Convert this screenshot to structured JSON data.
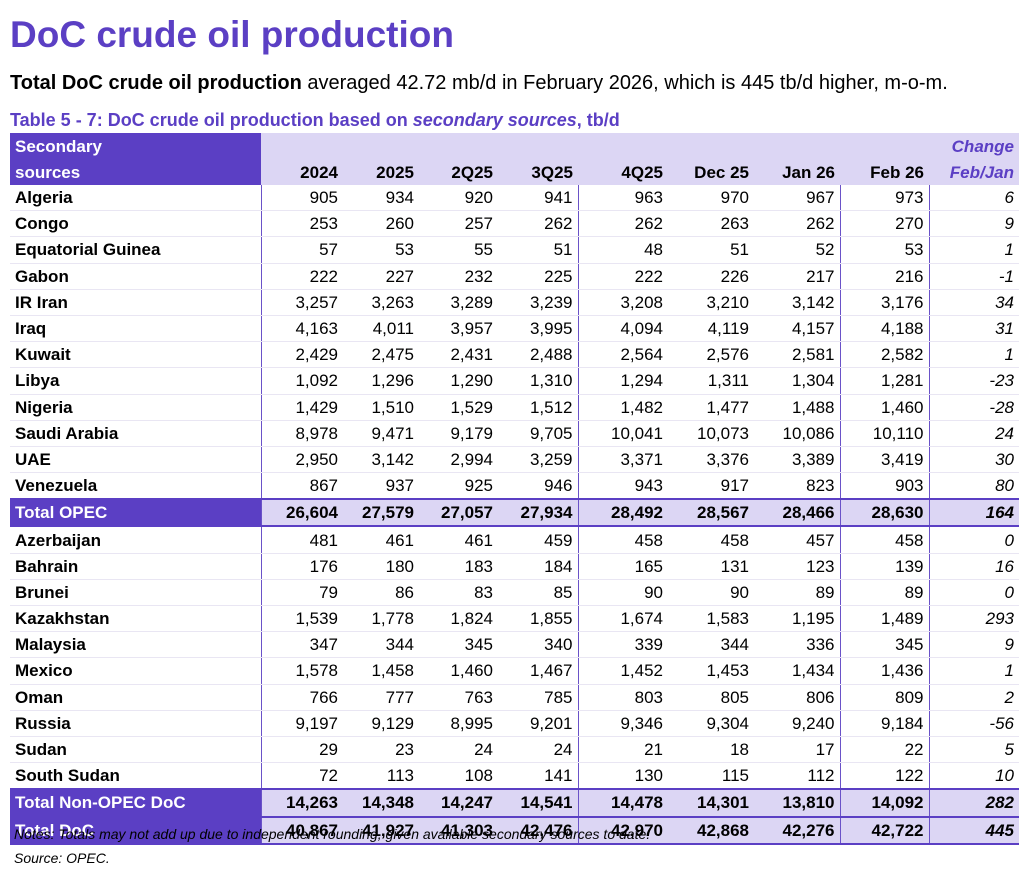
{
  "title": "DoC crude oil production",
  "intro": {
    "bold": "Total DoC crude oil production",
    "rest": " averaged 42.72 mb/d in February 2026, which is 445 tb/d higher, m-o-m."
  },
  "caption": {
    "pre": "Table 5 - 7: DoC crude oil production based on ",
    "italic": "secondary sources",
    "post": ", tb/d"
  },
  "header": {
    "label_line1": "Secondary",
    "label_line2": "sources",
    "change_line1": "Change",
    "change_line2": "Feb/Jan",
    "columns": [
      "2024",
      "2025",
      "2Q25",
      "3Q25",
      "4Q25",
      "Dec 25",
      "Jan 26",
      "Feb 26"
    ]
  },
  "rows": [
    {
      "name": "Algeria",
      "values": [
        "905",
        "934",
        "920",
        "941",
        "963",
        "970",
        "967",
        "973"
      ],
      "change": "6"
    },
    {
      "name": "Congo",
      "values": [
        "253",
        "260",
        "257",
        "262",
        "262",
        "263",
        "262",
        "270"
      ],
      "change": "9"
    },
    {
      "name": "Equatorial Guinea",
      "values": [
        "57",
        "53",
        "55",
        "51",
        "48",
        "51",
        "52",
        "53"
      ],
      "change": "1"
    },
    {
      "name": "Gabon",
      "values": [
        "222",
        "227",
        "232",
        "225",
        "222",
        "226",
        "217",
        "216"
      ],
      "change": "-1"
    },
    {
      "name": "IR Iran",
      "values": [
        "3,257",
        "3,263",
        "3,289",
        "3,239",
        "3,208",
        "3,210",
        "3,142",
        "3,176"
      ],
      "change": "34"
    },
    {
      "name": "Iraq",
      "values": [
        "4,163",
        "4,011",
        "3,957",
        "3,995",
        "4,094",
        "4,119",
        "4,157",
        "4,188"
      ],
      "change": "31"
    },
    {
      "name": "Kuwait",
      "values": [
        "2,429",
        "2,475",
        "2,431",
        "2,488",
        "2,564",
        "2,576",
        "2,581",
        "2,582"
      ],
      "change": "1"
    },
    {
      "name": "Libya",
      "values": [
        "1,092",
        "1,296",
        "1,290",
        "1,310",
        "1,294",
        "1,311",
        "1,304",
        "1,281"
      ],
      "change": "-23"
    },
    {
      "name": "Nigeria",
      "values": [
        "1,429",
        "1,510",
        "1,529",
        "1,512",
        "1,482",
        "1,477",
        "1,488",
        "1,460"
      ],
      "change": "-28"
    },
    {
      "name": "Saudi Arabia",
      "values": [
        "8,978",
        "9,471",
        "9,179",
        "9,705",
        "10,041",
        "10,073",
        "10,086",
        "10,110"
      ],
      "change": "24"
    },
    {
      "name": "UAE",
      "values": [
        "2,950",
        "3,142",
        "2,994",
        "3,259",
        "3,371",
        "3,376",
        "3,389",
        "3,419"
      ],
      "change": "30"
    },
    {
      "name": "Venezuela",
      "values": [
        "867",
        "937",
        "925",
        "946",
        "943",
        "917",
        "823",
        "903"
      ],
      "change": "80"
    },
    {
      "name": "Total  OPEC",
      "values": [
        "26,604",
        "27,579",
        "27,057",
        "27,934",
        "28,492",
        "28,567",
        "28,466",
        "28,630"
      ],
      "change": "164",
      "total": true
    },
    {
      "name": "Azerbaijan",
      "values": [
        "481",
        "461",
        "461",
        "459",
        "458",
        "458",
        "457",
        "458"
      ],
      "change": "0"
    },
    {
      "name": "Bahrain",
      "values": [
        "176",
        "180",
        "183",
        "184",
        "165",
        "131",
        "123",
        "139"
      ],
      "change": "16"
    },
    {
      "name": "Brunei",
      "values": [
        "79",
        "86",
        "83",
        "85",
        "90",
        "90",
        "89",
        "89"
      ],
      "change": "0"
    },
    {
      "name": "Kazakhstan",
      "values": [
        "1,539",
        "1,778",
        "1,824",
        "1,855",
        "1,674",
        "1,583",
        "1,195",
        "1,489"
      ],
      "change": "293"
    },
    {
      "name": "Malaysia",
      "values": [
        "347",
        "344",
        "345",
        "340",
        "339",
        "344",
        "336",
        "345"
      ],
      "change": "9"
    },
    {
      "name": "Mexico",
      "values": [
        "1,578",
        "1,458",
        "1,460",
        "1,467",
        "1,452",
        "1,453",
        "1,434",
        "1,436"
      ],
      "change": "1"
    },
    {
      "name": "Oman",
      "values": [
        "766",
        "777",
        "763",
        "785",
        "803",
        "805",
        "806",
        "809"
      ],
      "change": "2"
    },
    {
      "name": "Russia",
      "values": [
        "9,197",
        "9,129",
        "8,995",
        "9,201",
        "9,346",
        "9,304",
        "9,240",
        "9,184"
      ],
      "change": "-56"
    },
    {
      "name": "Sudan",
      "values": [
        "29",
        "23",
        "24",
        "24",
        "21",
        "18",
        "17",
        "22"
      ],
      "change": "5"
    },
    {
      "name": "South Sudan",
      "values": [
        "72",
        "113",
        "108",
        "141",
        "130",
        "115",
        "112",
        "122"
      ],
      "change": "10"
    },
    {
      "name": "Total Non-OPEC DoC",
      "values": [
        "14,263",
        "14,348",
        "14,247",
        "14,541",
        "14,478",
        "14,301",
        "13,810",
        "14,092"
      ],
      "change": "282",
      "total": true
    },
    {
      "name": "Total DoC",
      "values": [
        "40,867",
        "41,927",
        "41,303",
        "42,476",
        "42,970",
        "42,868",
        "42,276",
        "42,722"
      ],
      "change": "445",
      "total": true
    }
  ],
  "notes": "Notes: Totals may not add up due to independent rounding, given available secondary sources to date.",
  "source": "Source: OPEC.",
  "colors": {
    "accent": "#5b3fc4",
    "header_fill": "#dcd6f4"
  }
}
